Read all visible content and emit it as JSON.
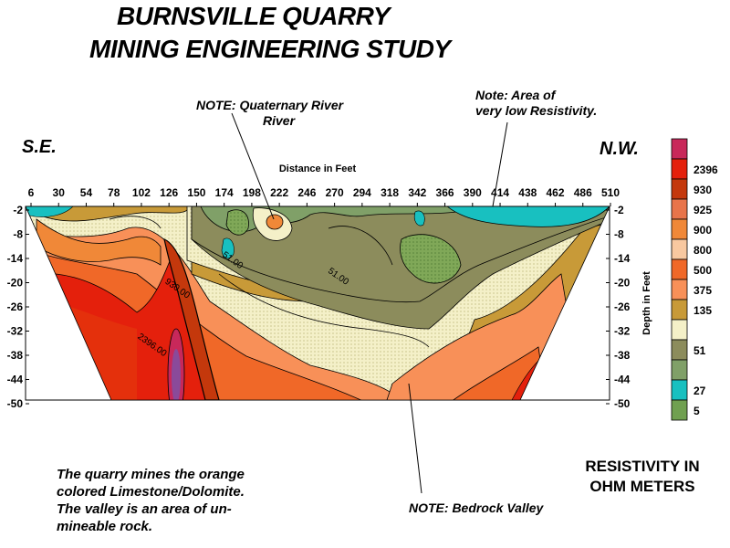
{
  "title_line1": "BURNSVILLE QUARRY",
  "title_line2": "MINING ENGINEERING STUDY",
  "note_river_line1": "NOTE: Quaternary River",
  "note_river_line2": "River",
  "note_resistivity_line1": "Note:  Area of",
  "note_resistivity_line2": "very low Resistivity.",
  "direction_left": "S.E.",
  "direction_right": "N.W.",
  "caption_lines": [
    "The quarry mines the orange",
    "colored Limestone/Dolomite.",
    "The valley is an area of un-",
    "mineable rock."
  ],
  "note_valley": "NOTE:  Bedrock Valley",
  "resistivity_title_line1": "RESISTIVITY IN",
  "resistivity_title_line2": "OHM METERS",
  "chart_data": {
    "type": "heatmap",
    "xlabel": "Distance in Feet",
    "ylabel": "Depth in Feet",
    "x_ticks": [
      6,
      30,
      54,
      78,
      102,
      126,
      150,
      174,
      198,
      222,
      246,
      270,
      294,
      318,
      342,
      366,
      390,
      414,
      438,
      462,
      486,
      510
    ],
    "y_ticks": [
      -2,
      -8,
      -14,
      -20,
      -26,
      -32,
      -38,
      -44,
      -50
    ],
    "xlim": [
      6,
      510
    ],
    "ylim": [
      -50,
      -2
    ],
    "contour_labels": [
      {
        "text": "2396.00",
        "x": 110,
        "y": -36
      },
      {
        "text": "930.00",
        "x": 132,
        "y": -22
      },
      {
        "text": "51.00",
        "x": 180,
        "y": -15
      },
      {
        "text": "51.00",
        "x": 272,
        "y": -19
      }
    ],
    "legend": [
      {
        "label": "",
        "color": "#c8285a"
      },
      {
        "label": "2396",
        "color": "#e4200c"
      },
      {
        "label": "930",
        "color": "#c4380c"
      },
      {
        "label": "925",
        "color": "#e8744a"
      },
      {
        "label": "900",
        "color": "#f08838"
      },
      {
        "label": "800",
        "color": "#f8c8a0"
      },
      {
        "label": "500",
        "color": "#f06828"
      },
      {
        "label": "375",
        "color": "#f89058"
      },
      {
        "label": "135",
        "color": "#c89a38"
      },
      {
        "label": "",
        "color": "#f4f0c8"
      },
      {
        "label": "51",
        "color": "#8c8c5c"
      },
      {
        "label": "",
        "color": "#80a068"
      },
      {
        "label": "27",
        "color": "#18c0c0"
      },
      {
        "label": "5",
        "color": "#70a050"
      }
    ]
  }
}
